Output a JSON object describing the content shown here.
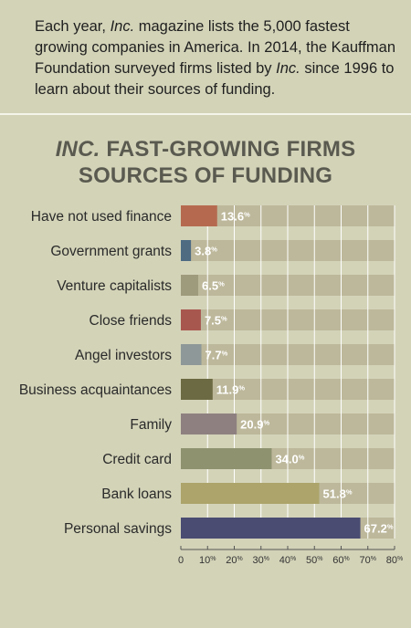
{
  "intro": {
    "p1": "Each year, ",
    "magazine": "Inc.",
    "p2": " magazine lists the 5,000 fastest growing companies in America. In 2014, the Kauffman Foundation surveyed firms listed by ",
    "magazine2": "Inc.",
    "p3": " since 1996 to learn about their sources of funding."
  },
  "title": {
    "line1_italic": "INC.",
    "line1_rest": " FAST-GROWING FIRMS",
    "line2": "SOURCES OF FUNDING"
  },
  "chart_data": {
    "type": "bar",
    "orientation": "horizontal",
    "title": "INC. FAST-GROWING FIRMS SOURCES OF FUNDING",
    "categories": [
      "Have not used finance",
      "Government grants",
      "Venture capitalists",
      "Close friends",
      "Angel investors",
      "Business acquaintances",
      "Family",
      "Credit card",
      "Bank loans",
      "Personal savings"
    ],
    "values": [
      13.6,
      3.8,
      6.5,
      7.5,
      7.7,
      11.9,
      20.9,
      34.0,
      51.8,
      67.2
    ],
    "value_labels": [
      "13.6",
      "3.8",
      "6.5",
      "7.5",
      "7.7",
      "11.9",
      "20.9",
      "34.0",
      "51.8",
      "67.2"
    ],
    "unit": "%",
    "bar_colors": [
      "#b56a4f",
      "#4e6b82",
      "#9e9a7c",
      "#a8574f",
      "#8e9898",
      "#6c6a42",
      "#8e8080",
      "#8e926f",
      "#aca46a",
      "#4a4c72"
    ],
    "track_color": "#bdb89b",
    "xlim": [
      0,
      80
    ],
    "x_ticks": [
      0,
      10,
      20,
      30,
      40,
      50,
      60,
      70,
      80
    ],
    "x_tick_labels": [
      "0",
      "10",
      "20",
      "30",
      "40",
      "50",
      "60",
      "70",
      "80"
    ],
    "grid": true,
    "grid_color": "#ffffff"
  }
}
